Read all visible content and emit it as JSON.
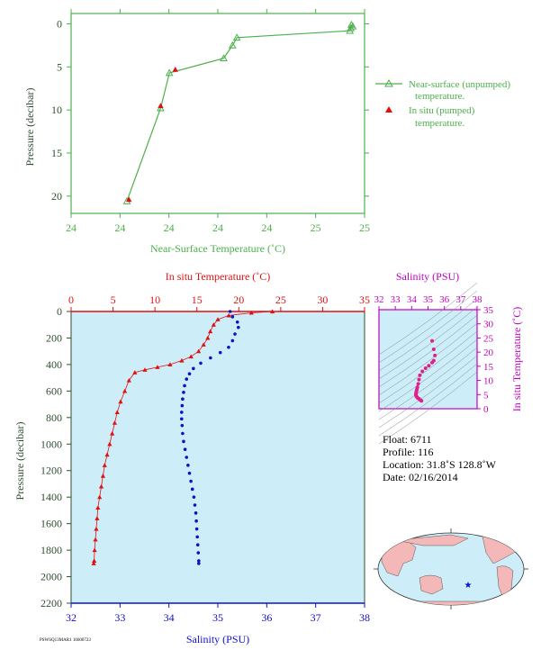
{
  "colors": {
    "green": "#4cb04c",
    "red": "#e01010",
    "blue": "#1010c8",
    "magenta": "#c000c0",
    "panel_bg": "#cdeef8",
    "axis_dark": "#2f4f2f",
    "pink_points": "#e0208a"
  },
  "chart_data": [
    {
      "type": "line",
      "ylabel": "Pressure (decibar)",
      "xlabel": "Near-Surface Temperature (˚C)",
      "xlim": [
        24,
        25
      ],
      "ylim": [
        22,
        -1.2
      ],
      "x_tick_labels": [
        "24",
        "24",
        "24",
        "24",
        "24",
        "25",
        "25"
      ],
      "x_ticks": [
        24,
        24.1667,
        24.3333,
        24.5,
        24.6667,
        24.8333,
        25
      ],
      "y_ticks": [
        0,
        5,
        10,
        15,
        20
      ],
      "legend_placement": "right",
      "series": [
        {
          "name": "Near-surface (unpumped) temperature.",
          "marker": "triangle-outline",
          "color": "#4cb04c",
          "points": [
            [
              24.955,
              0.1
            ],
            [
              24.96,
              0.3
            ],
            [
              24.953,
              0.5
            ],
            [
              24.95,
              0.8
            ],
            [
              24.565,
              1.6
            ],
            [
              24.55,
              2.5
            ],
            [
              24.52,
              4.0
            ],
            [
              24.335,
              5.7
            ],
            [
              24.305,
              9.8
            ],
            [
              24.19,
              20.6
            ]
          ]
        },
        {
          "name": "In situ (pumped) temperature.",
          "marker": "triangle",
          "color": "#e01010",
          "points": [
            [
              24.355,
              5.3
            ],
            [
              24.305,
              9.5
            ],
            [
              24.197,
              20.4
            ]
          ]
        }
      ]
    },
    {
      "type": "scatter",
      "ylabel": "Pressure (decibar)",
      "top_axis": {
        "label": "In situ Temperature (˚C)",
        "range": [
          0,
          35
        ],
        "ticks": [
          0,
          5,
          10,
          15,
          20,
          25,
          30,
          35
        ]
      },
      "bottom_axis": {
        "label": "Salinity (PSU)",
        "range": [
          32,
          38
        ],
        "ticks": [
          32,
          33,
          34,
          35,
          36,
          37,
          38
        ]
      },
      "ylim": [
        2200,
        0
      ],
      "y_ticks": [
        0,
        200,
        400,
        600,
        800,
        1000,
        1200,
        1400,
        1600,
        1800,
        2000,
        2200
      ],
      "series": [
        {
          "name": "In situ Temperature (˚C)",
          "axis": "top",
          "marker": "triangle",
          "color": "#e01010",
          "points": [
            [
              24.0,
              0
            ],
            [
              21.5,
              10
            ],
            [
              18.8,
              30
            ],
            [
              17.5,
              60
            ],
            [
              17.0,
              100
            ],
            [
              16.6,
              150
            ],
            [
              16.3,
              200
            ],
            [
              15.8,
              250
            ],
            [
              15.2,
              300
            ],
            [
              14.3,
              340
            ],
            [
              13.2,
              370
            ],
            [
              11.8,
              400
            ],
            [
              10.3,
              420
            ],
            [
              8.8,
              440
            ],
            [
              7.6,
              460
            ],
            [
              6.9,
              520
            ],
            [
              6.4,
              600
            ],
            [
              5.9,
              680
            ],
            [
              5.5,
              760
            ],
            [
              5.2,
              840
            ],
            [
              4.9,
              920
            ],
            [
              4.6,
              1000
            ],
            [
              4.3,
              1080
            ],
            [
              4.0,
              1160
            ],
            [
              3.8,
              1240
            ],
            [
              3.6,
              1320
            ],
            [
              3.4,
              1400
            ],
            [
              3.2,
              1480
            ],
            [
              3.1,
              1560
            ],
            [
              3.0,
              1640
            ],
            [
              2.9,
              1720
            ],
            [
              2.8,
              1800
            ],
            [
              2.75,
              1880
            ],
            [
              2.7,
              1900
            ]
          ]
        },
        {
          "name": "Salinity (PSU)",
          "axis": "bottom",
          "marker": "dot",
          "color": "#1010c8",
          "points": [
            [
              35.25,
              0
            ],
            [
              35.3,
              40
            ],
            [
              35.4,
              80
            ],
            [
              35.42,
              120
            ],
            [
              35.35,
              170
            ],
            [
              35.3,
              220
            ],
            [
              35.22,
              270
            ],
            [
              35.05,
              310
            ],
            [
              34.85,
              350
            ],
            [
              34.65,
              390
            ],
            [
              34.5,
              430
            ],
            [
              34.42,
              470
            ],
            [
              34.36,
              510
            ],
            [
              34.32,
              560
            ],
            [
              34.3,
              610
            ],
            [
              34.28,
              660
            ],
            [
              34.27,
              710
            ],
            [
              34.26,
              760
            ],
            [
              34.26,
              810
            ],
            [
              34.27,
              860
            ],
            [
              34.28,
              920
            ],
            [
              34.3,
              980
            ],
            [
              34.33,
              1040
            ],
            [
              34.36,
              1100
            ],
            [
              34.39,
              1160
            ],
            [
              34.42,
              1220
            ],
            [
              34.45,
              1280
            ],
            [
              34.48,
              1340
            ],
            [
              34.51,
              1400
            ],
            [
              34.53,
              1460
            ],
            [
              34.55,
              1520
            ],
            [
              34.56,
              1580
            ],
            [
              34.57,
              1640
            ],
            [
              34.58,
              1700
            ],
            [
              34.59,
              1760
            ],
            [
              34.6,
              1820
            ],
            [
              34.61,
              1880
            ],
            [
              34.61,
              1900
            ]
          ]
        }
      ]
    },
    {
      "type": "scatter",
      "title": "Salinity (PSU)",
      "x_ticks": [
        32,
        33,
        34,
        35,
        36,
        37,
        38
      ],
      "y_ticks": [
        0,
        5,
        10,
        15,
        20,
        25,
        30,
        35
      ],
      "ylabel": "In situ Temperature (˚C)",
      "xlim": [
        32,
        38
      ],
      "ylim": [
        0,
        35
      ],
      "color": "#e0208a",
      "points": [
        [
          35.25,
          24.0
        ],
        [
          35.35,
          21.0
        ],
        [
          35.42,
          18.8
        ],
        [
          35.35,
          17.0
        ],
        [
          35.25,
          16.3
        ],
        [
          35.05,
          15.2
        ],
        [
          34.85,
          14.3
        ],
        [
          34.65,
          13.2
        ],
        [
          34.5,
          11.8
        ],
        [
          34.45,
          10.3
        ],
        [
          34.4,
          8.8
        ],
        [
          34.35,
          7.6
        ],
        [
          34.32,
          6.9
        ],
        [
          34.3,
          6.4
        ],
        [
          34.28,
          5.9
        ],
        [
          34.27,
          5.5
        ],
        [
          34.26,
          5.2
        ],
        [
          34.26,
          4.9
        ],
        [
          34.27,
          4.6
        ],
        [
          34.3,
          4.3
        ],
        [
          34.35,
          3.9
        ],
        [
          34.42,
          3.6
        ],
        [
          34.48,
          3.3
        ],
        [
          34.55,
          3.0
        ],
        [
          34.6,
          2.8
        ]
      ]
    }
  ],
  "info": {
    "float": "Float:  6711",
    "profile": "Profile:  116",
    "location": "Location:  31.8˚S  128.8˚W",
    "date": "Date:  02/16/2014"
  },
  "footer_code": "PSWSQ13MAR1 16600723"
}
